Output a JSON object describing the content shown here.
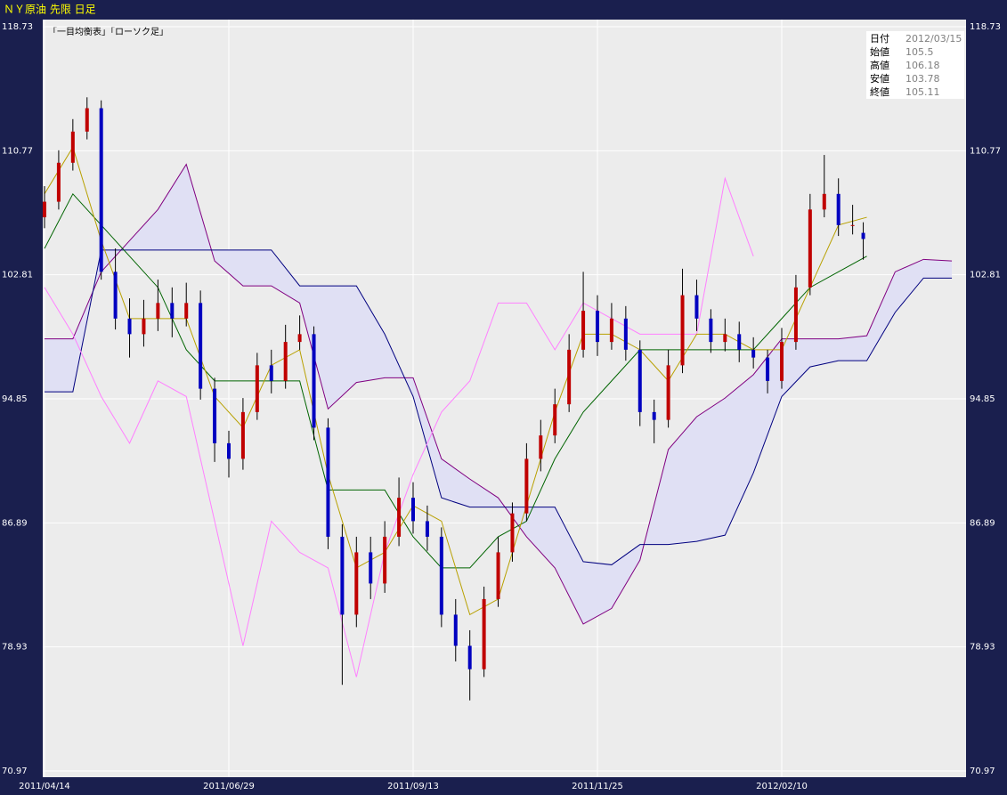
{
  "chart_data": {
    "type": "candlestick",
    "title": "ＮＹ原油 先限 日足",
    "legend_text": "「一目均衡表」「ローソク足」",
    "ylim": [
      70.97,
      118.73
    ],
    "yticks": [
      70.97,
      78.93,
      86.89,
      94.85,
      102.81,
      110.77,
      118.73
    ],
    "xlim": [
      -0.5,
      260
    ],
    "xticks": [
      {
        "value": 0,
        "label": "2011/04/14"
      },
      {
        "value": 52,
        "label": "2011/06/29"
      },
      {
        "value": 104,
        "label": "2011/09/13"
      },
      {
        "value": 156,
        "label": "2011/11/25"
      },
      {
        "value": 208,
        "label": "2012/02/10"
      }
    ],
    "grid": true,
    "up_color": "#c00000",
    "down_color": "#0000c0",
    "x": [
      0,
      4,
      8,
      12,
      16,
      20,
      24,
      28,
      32,
      36,
      40,
      44,
      48,
      52,
      56,
      60,
      64,
      68,
      72,
      76,
      80,
      84,
      88,
      92,
      96,
      100,
      104,
      108,
      112,
      116,
      120,
      124,
      128,
      132,
      136,
      140,
      144,
      148,
      152,
      156,
      160,
      164,
      168,
      172,
      176,
      180,
      184,
      188,
      192,
      196,
      200,
      204,
      208,
      212,
      216,
      220,
      224,
      228,
      231
    ],
    "ohlc": [
      [
        106.5,
        108.5,
        105.8,
        107.5
      ],
      [
        107.5,
        110.8,
        107,
        110
      ],
      [
        110,
        112.8,
        109.5,
        112
      ],
      [
        112,
        114.2,
        111.5,
        113.5
      ],
      [
        113.5,
        114,
        102.5,
        103
      ],
      [
        103,
        104.5,
        99.3,
        100
      ],
      [
        100,
        101.3,
        97.5,
        99
      ],
      [
        99,
        101.2,
        98.2,
        100
      ],
      [
        100,
        102.5,
        99.2,
        101
      ],
      [
        101,
        102,
        98.8,
        100
      ],
      [
        100,
        102.3,
        99.5,
        101
      ],
      [
        101,
        101.8,
        94.8,
        95.5
      ],
      [
        95.5,
        96.2,
        90.8,
        92
      ],
      [
        92,
        92.8,
        89.8,
        91
      ],
      [
        91,
        94.9,
        90.3,
        94
      ],
      [
        94,
        97.8,
        93.5,
        97
      ],
      [
        97,
        98,
        95.2,
        96
      ],
      [
        96,
        99.6,
        95.5,
        98.5
      ],
      [
        98.5,
        100.2,
        98,
        99
      ],
      [
        99,
        99.5,
        92.2,
        93
      ],
      [
        93,
        93.6,
        85.2,
        86
      ],
      [
        86,
        86.8,
        76.5,
        81
      ],
      [
        81,
        86,
        80.2,
        85
      ],
      [
        85,
        86,
        82,
        83
      ],
      [
        83,
        87,
        82.4,
        86
      ],
      [
        86,
        89.8,
        85.4,
        88.5
      ],
      [
        88.5,
        89.5,
        86.2,
        87
      ],
      [
        87,
        88,
        85.1,
        86
      ],
      [
        86,
        86.6,
        80.2,
        81
      ],
      [
        81,
        82,
        78,
        79
      ],
      [
        79,
        80,
        75.5,
        77.5
      ],
      [
        77.5,
        82.8,
        77,
        82
      ],
      [
        82,
        86,
        81.5,
        85
      ],
      [
        85,
        88.2,
        84.4,
        87.5
      ],
      [
        87.5,
        92,
        87,
        91
      ],
      [
        91,
        93.5,
        90.2,
        92.5
      ],
      [
        92.5,
        95.5,
        92,
        94.5
      ],
      [
        94.5,
        99,
        94,
        98
      ],
      [
        98,
        103,
        97.5,
        100.5
      ],
      [
        100.5,
        101.5,
        97.6,
        98.5
      ],
      [
        98.5,
        101,
        98,
        100
      ],
      [
        100,
        100.8,
        97.3,
        98
      ],
      [
        98,
        98.6,
        93.1,
        94
      ],
      [
        94,
        94.8,
        92,
        93.5
      ],
      [
        93.5,
        98,
        93,
        97
      ],
      [
        97,
        103.2,
        96.5,
        101.5
      ],
      [
        101.5,
        102.5,
        99.2,
        100
      ],
      [
        100,
        100.6,
        97.8,
        98.5
      ],
      [
        98.5,
        100,
        97.9,
        99
      ],
      [
        99,
        99.8,
        97.2,
        98
      ],
      [
        98,
        98.8,
        96.8,
        97.5
      ],
      [
        97.5,
        98,
        95.2,
        96
      ],
      [
        96,
        99.4,
        95.5,
        98.5
      ],
      [
        98.5,
        102.8,
        98,
        102
      ],
      [
        102,
        108,
        101.5,
        107
      ],
      [
        107,
        110.5,
        106.5,
        108
      ],
      [
        108,
        109,
        105.3,
        106
      ],
      [
        106,
        107.3,
        105.4,
        106
      ],
      [
        105.5,
        106.18,
        103.78,
        105.11
      ]
    ],
    "line_x": [
      0,
      8,
      16,
      24,
      32,
      40,
      48,
      56,
      64,
      72,
      80,
      88,
      96,
      104,
      112,
      120,
      128,
      136,
      144,
      152,
      160,
      168,
      176,
      184,
      192,
      200,
      208,
      216,
      224,
      232,
      240,
      248,
      256
    ],
    "lines": [
      {
        "color": "#e0e0f4",
        "fill": "cloud"
      },
      {
        "color": "#800080",
        "values": [
          98.7,
          98.7,
          103,
          105,
          107,
          109.9,
          103.7,
          102.1,
          102.1,
          101,
          94.2,
          95.9,
          96.2,
          96.2,
          91,
          89.7,
          88.5,
          86,
          84,
          80.4,
          81.4,
          84.5,
          91.6,
          93.7,
          94.9,
          96.4,
          98.7,
          98.7,
          98.7,
          98.9,
          103,
          103.8,
          103.7
        ]
      },
      {
        "color": "#00007f",
        "values": [
          95.3,
          95.3,
          104.4,
          104.4,
          104.4,
          104.4,
          104.4,
          104.4,
          104.4,
          102.1,
          102.1,
          102.1,
          99,
          95,
          88.5,
          87.9,
          87.9,
          87.9,
          87.9,
          84.4,
          84.2,
          85.5,
          85.5,
          85.7,
          86.1,
          90.1,
          95,
          96.9,
          97.3,
          97.3,
          100.4,
          102.6,
          102.6
        ]
      },
      {
        "color": "#ff80ff",
        "values": [
          102,
          99,
          95,
          92,
          96,
          95,
          87,
          79,
          87,
          85,
          84,
          77,
          85,
          90,
          94,
          96,
          101,
          101,
          98,
          101,
          100,
          99,
          99,
          99,
          109,
          104,
          null,
          null,
          null,
          null,
          null,
          null,
          null
        ]
      },
      {
        "color": "#006400",
        "values": [
          104.5,
          108,
          106,
          104,
          102,
          98,
          96,
          96,
          96,
          96,
          89,
          89,
          89,
          86,
          84,
          84,
          86,
          87,
          91,
          94,
          96,
          98,
          98,
          98,
          98,
          98,
          100,
          102,
          103,
          104,
          null,
          null,
          null
        ]
      },
      {
        "color": "#b8a000",
        "values": [
          108,
          111,
          105,
          100,
          100,
          100,
          95,
          93,
          97,
          98,
          90,
          84,
          85,
          88,
          87,
          81,
          82,
          88,
          94,
          99,
          99,
          98,
          96,
          99,
          99,
          98,
          98,
          102,
          106,
          106.5,
          null,
          null,
          null
        ]
      }
    ],
    "info": {
      "labels": [
        "日付",
        "始値",
        "高値",
        "安値",
        "終値"
      ],
      "values": [
        "2012/03/15",
        "105.5",
        "106.18",
        "103.78",
        "105.11"
      ]
    }
  }
}
